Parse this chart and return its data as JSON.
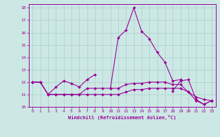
{
  "background_color": "#cce8e4",
  "grid_color": "#aacccc",
  "line_color": "#990099",
  "xlim": [
    -0.5,
    23.5
  ],
  "ylim": [
    10,
    18.3
  ],
  "yticks": [
    10,
    11,
    12,
    13,
    14,
    15,
    16,
    17,
    18
  ],
  "xticks": [
    0,
    1,
    2,
    3,
    4,
    5,
    6,
    7,
    8,
    9,
    10,
    11,
    12,
    13,
    14,
    15,
    16,
    17,
    18,
    19,
    20,
    21,
    22,
    23
  ],
  "xlabel": "Windchill (Refroidissement éolien,°C)",
  "line1_x": [
    0,
    1,
    2,
    3,
    4,
    5,
    6,
    7,
    8
  ],
  "line1_y": [
    12.0,
    12.0,
    11.0,
    11.6,
    12.1,
    11.9,
    11.6,
    12.2,
    12.6
  ],
  "line2_x": [
    10,
    11,
    12,
    13,
    14,
    15,
    16,
    17,
    18,
    19
  ],
  "line2_y": [
    11.5,
    15.6,
    16.2,
    18.0,
    16.1,
    15.5,
    14.4,
    13.6,
    12.1,
    12.2
  ],
  "line3_x": [
    18,
    19,
    20,
    21,
    22,
    23
  ],
  "line3_y": [
    11.3,
    12.1,
    12.2,
    10.6,
    10.2,
    10.5
  ],
  "line4_x": [
    0,
    1,
    2,
    3,
    4,
    5,
    6,
    7,
    8,
    9,
    10,
    11,
    12,
    13,
    14,
    15,
    16,
    17,
    18,
    19,
    20,
    21,
    22,
    23
  ],
  "line4_y": [
    12.0,
    12.0,
    11.0,
    11.0,
    11.0,
    11.0,
    11.0,
    11.5,
    11.5,
    11.5,
    11.5,
    11.5,
    11.8,
    11.9,
    11.9,
    12.0,
    12.0,
    12.0,
    11.8,
    11.8,
    11.2,
    10.8,
    10.6,
    10.5
  ],
  "line5_x": [
    0,
    1,
    2,
    3,
    4,
    5,
    6,
    7,
    8,
    9,
    10,
    11,
    12,
    13,
    14,
    15,
    16,
    17,
    18,
    19,
    20,
    21,
    22,
    23
  ],
  "line5_y": [
    12.0,
    12.0,
    11.0,
    11.0,
    11.0,
    11.0,
    11.0,
    11.0,
    11.0,
    11.0,
    11.0,
    11.0,
    11.2,
    11.4,
    11.4,
    11.5,
    11.5,
    11.5,
    11.5,
    11.5,
    11.2,
    10.5,
    10.2,
    10.5
  ]
}
